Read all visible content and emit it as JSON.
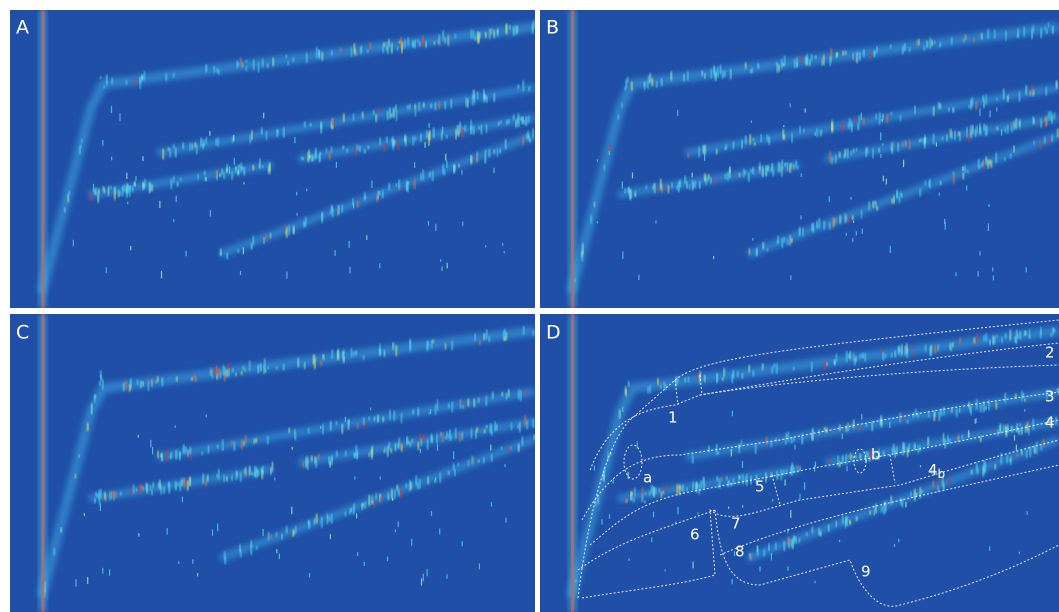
{
  "panels": [
    {
      "label": "A"
    },
    {
      "label": "B"
    },
    {
      "label": "C"
    },
    {
      "label": "D"
    }
  ],
  "regions": [
    {
      "label": "1"
    },
    {
      "label": "2"
    },
    {
      "label": "3"
    },
    {
      "label": "4"
    },
    {
      "label": "4",
      "subscript": "b"
    },
    {
      "label": "5"
    },
    {
      "label": "6"
    },
    {
      "label": "7"
    },
    {
      "label": "8"
    },
    {
      "label": "9"
    }
  ],
  "markers": [
    {
      "label": "a"
    },
    {
      "label": "b"
    }
  ]
}
